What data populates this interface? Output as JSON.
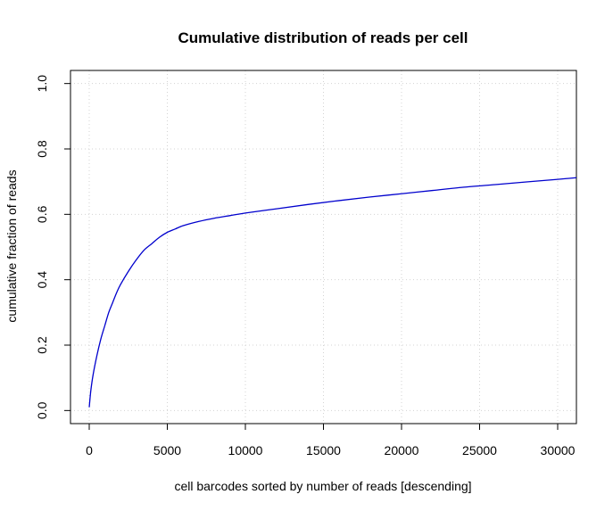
{
  "chart_data": {
    "type": "line",
    "title": "Cumulative distribution of reads per cell",
    "xlabel": "cell barcodes sorted by number of reads [descending]",
    "ylabel": "cumulative fraction of reads",
    "xlim": [
      -1200,
      31200
    ],
    "ylim": [
      -0.04,
      1.04
    ],
    "xticks": [
      0,
      5000,
      10000,
      15000,
      20000,
      25000,
      30000
    ],
    "xtick_labels": [
      "0",
      "5000",
      "10000",
      "15000",
      "20000",
      "25000",
      "30000"
    ],
    "yticks": [
      0.0,
      0.2,
      0.4,
      0.6,
      0.8,
      1.0
    ],
    "ytick_labels": [
      "0.0",
      "0.2",
      "0.4",
      "0.6",
      "0.8",
      "1.0"
    ],
    "grid": true,
    "series": [
      {
        "color": "#0000CD",
        "x": [
          1,
          100,
          250,
          500,
          750,
          1000,
          1250,
          1500,
          1750,
          2000,
          2500,
          3000,
          3500,
          4000,
          4500,
          5000,
          5500,
          6000,
          7000,
          8000,
          9000,
          10000,
          12000,
          14000,
          16000,
          18000,
          20000,
          22000,
          24000,
          26000,
          28000,
          30000,
          31200
        ],
        "y": [
          0.01,
          0.06,
          0.11,
          0.17,
          0.22,
          0.26,
          0.3,
          0.33,
          0.36,
          0.385,
          0.425,
          0.46,
          0.49,
          0.51,
          0.53,
          0.545,
          0.555,
          0.565,
          0.578,
          0.588,
          0.596,
          0.604,
          0.617,
          0.63,
          0.642,
          0.653,
          0.663,
          0.673,
          0.683,
          0.691,
          0.699,
          0.707,
          0.712
        ]
      }
    ]
  }
}
